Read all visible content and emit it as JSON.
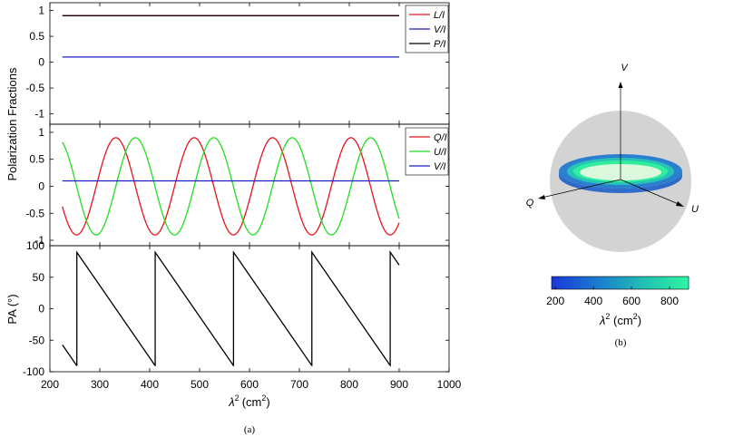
{
  "chart_data": [
    {
      "type": "line",
      "panel": "top",
      "ylim": [
        -1.2,
        1.15
      ],
      "yticks": [
        1,
        0.5,
        0,
        -0.5,
        -1
      ],
      "ytick_labels": [
        "1",
        "0.5",
        "0",
        "-0.5",
        "-1"
      ],
      "xlim": [
        200,
        1000
      ],
      "series": [
        {
          "name": "L/I",
          "color": "#e8141b",
          "x": [
            225,
            900
          ],
          "y": [
            0.9,
            0.9
          ]
        },
        {
          "name": "V/I",
          "color": "#1a1acc",
          "x": [
            225,
            900
          ],
          "y": [
            0.1,
            0.1
          ]
        },
        {
          "name": "P/I",
          "color": "#000000",
          "x": [
            225,
            900
          ],
          "y": [
            0.9,
            0.9
          ]
        }
      ],
      "legend": [
        "L/I",
        "V/I",
        "P/I"
      ],
      "legend_position": "top-right"
    },
    {
      "type": "line",
      "panel": "middle",
      "ylim": [
        -1.1,
        1.15
      ],
      "yticks": [
        1,
        0.5,
        0,
        -0.5,
        -1
      ],
      "ytick_labels": [
        "1",
        "0.5",
        "0",
        "-0.5",
        "-1"
      ],
      "xlim": [
        200,
        1000
      ],
      "series": [
        {
          "name": "Q/I",
          "color": "#e8141b",
          "function": "0.9*cos(2*(0.02*(x-225)+1.00))",
          "x_range": [
            225,
            900
          ]
        },
        {
          "name": "U/I",
          "color": "#22dd22",
          "function": "0.9*sin(2*(0.02*(x-225)+1.00))",
          "x_range": [
            225,
            900
          ]
        },
        {
          "name": "V/I",
          "color": "#1a1acc",
          "x": [
            225,
            900
          ],
          "y": [
            0.1,
            0.1
          ]
        }
      ],
      "legend": [
        "Q/I",
        "U/I",
        "V/I"
      ],
      "legend_position": "top-right"
    },
    {
      "type": "line",
      "panel": "bottom",
      "ylabel": "PA (°)",
      "ylim": [
        -100,
        100
      ],
      "yticks": [
        100,
        50,
        0,
        -50,
        -100
      ],
      "ytick_labels": [
        "100",
        "50",
        "0",
        "-50",
        "-100"
      ],
      "xlim": [
        200,
        1000
      ],
      "xticks": [
        200,
        300,
        400,
        500,
        600,
        700,
        800,
        900,
        1000
      ],
      "xtick_labels": [
        "200",
        "300",
        "400",
        "500",
        "600",
        "700",
        "800",
        "900",
        "1000"
      ],
      "xlabel_base": "λ",
      "xlabel_sup": "2",
      "xlabel_unit": "(cm",
      "xlabel_unit_sup": "2",
      "xlabel_close": ")",
      "series": [
        {
          "name": "PA",
          "color": "#000000",
          "function": "wrap(deg(0.02*(x-225)+1.00))",
          "x_range": [
            225,
            900
          ]
        }
      ]
    }
  ],
  "panel_a": {
    "shared_ylabel": "Polarization Fractions",
    "caption": "(a)"
  },
  "panel_b": {
    "axis_labels": {
      "v": "V",
      "q": "Q",
      "u": "U"
    },
    "colorbar": {
      "ticks": [
        "200",
        "400",
        "600",
        "800"
      ],
      "tick_values": [
        200,
        400,
        600,
        800
      ],
      "range": [
        180,
        900
      ],
      "label_base": "λ",
      "label_sup": "2",
      "label_unit": " (cm",
      "label_unit_sup": "2",
      "label_close": ")",
      "colors": [
        "#1838d8",
        "#1a7fd0",
        "#23c4b0",
        "#2ef6a2"
      ]
    },
    "caption": "(b)"
  }
}
